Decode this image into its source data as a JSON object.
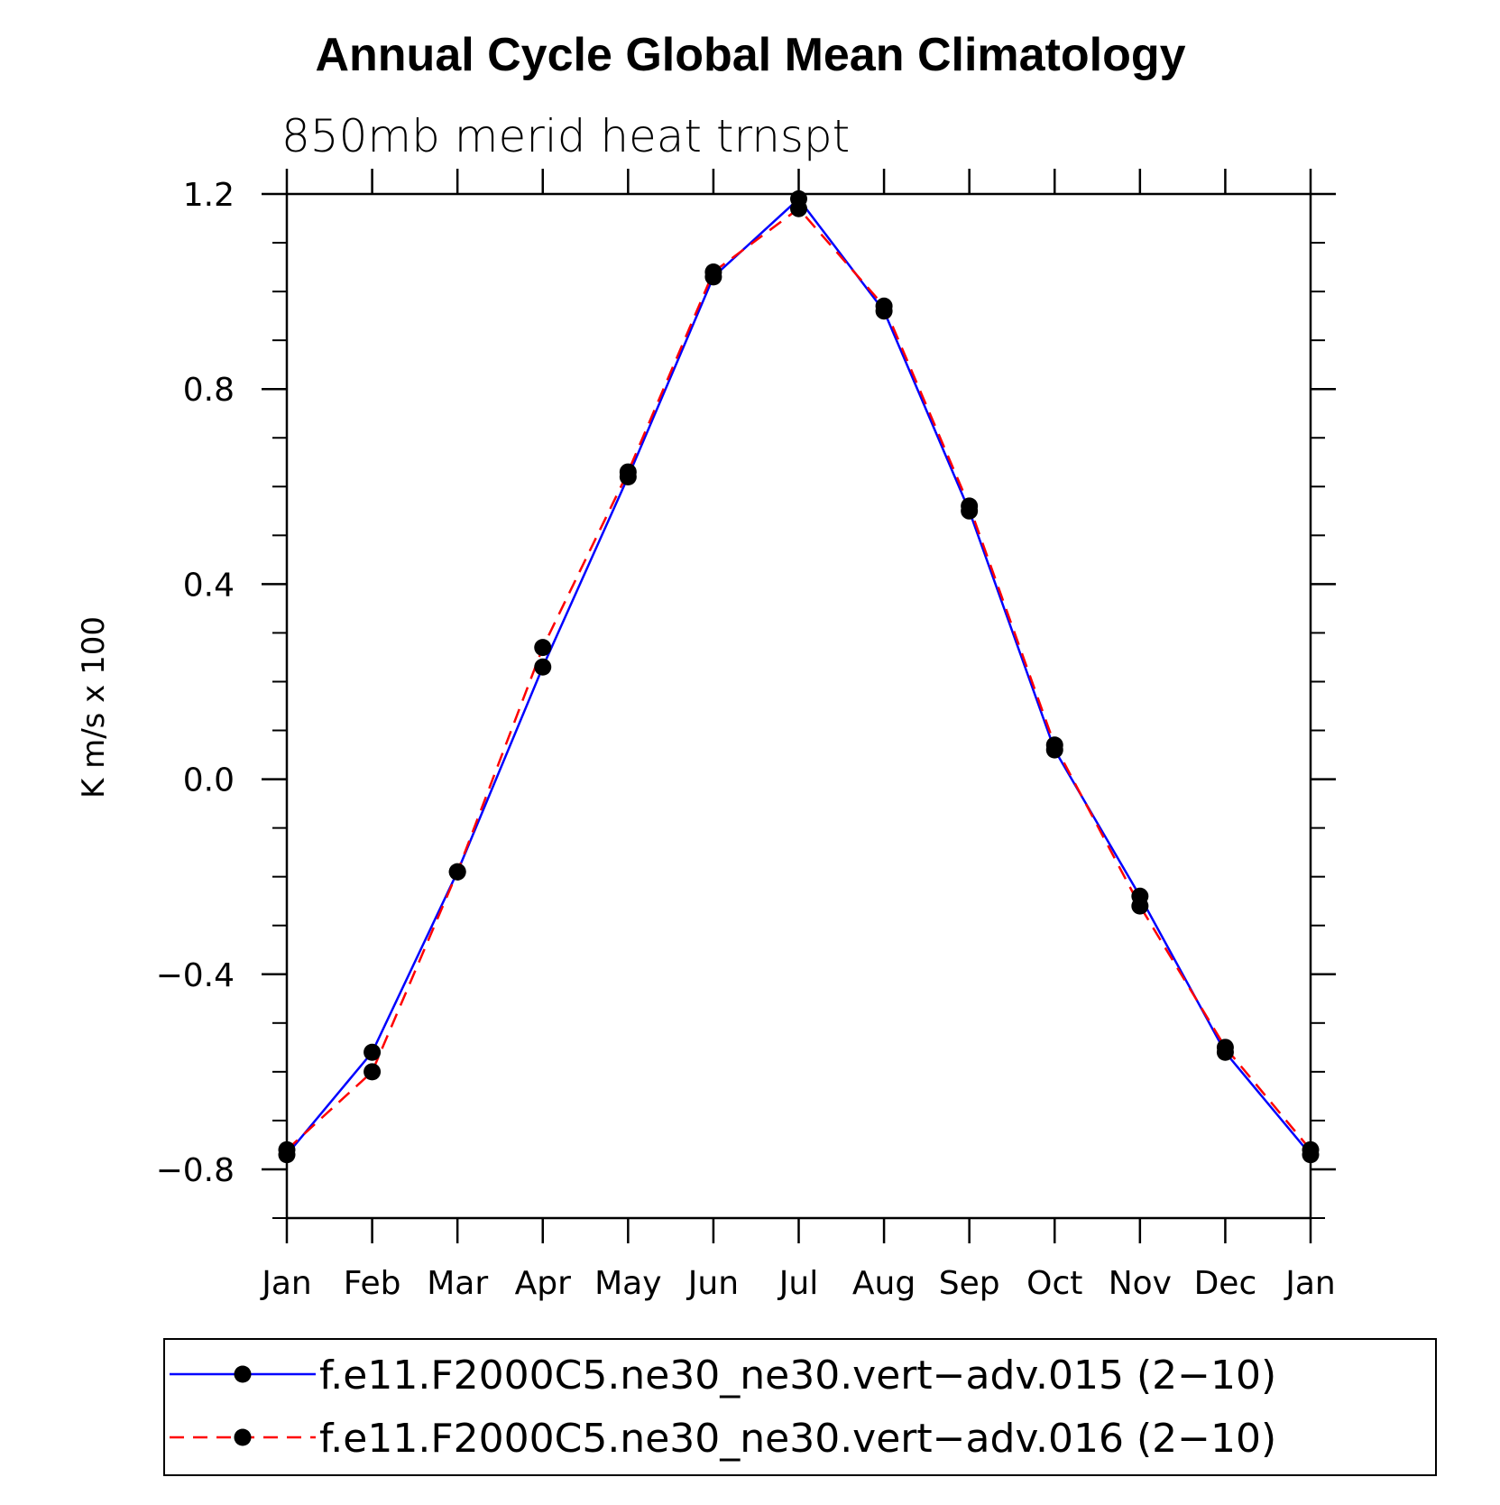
{
  "chart_data": {
    "type": "line",
    "title": "Annual Cycle Global Mean Climatology",
    "subtitle": "850mb merid heat trnspt",
    "ylabel": "K m/s x 100",
    "xlabel": "",
    "categories": [
      "Jan",
      "Feb",
      "Mar",
      "Apr",
      "May",
      "Jun",
      "Jul",
      "Aug",
      "Sep",
      "Oct",
      "Nov",
      "Dec",
      "Jan"
    ],
    "ylim": [
      -0.9,
      1.2
    ],
    "yticks": [
      -0.8,
      -0.4,
      0.0,
      0.4,
      0.8,
      1.2
    ],
    "ytick_labels": [
      "−0.8",
      "−0.4",
      "0.0",
      "0.4",
      "0.8",
      "1.2"
    ],
    "grid": false,
    "legend_position": "bottom",
    "series": [
      {
        "name": "f.e11.F2000C5.ne30_ne30.vert−adv.015 (2−10)",
        "color": "#0000ff",
        "dash": "solid",
        "marker": "filled-circle",
        "values": [
          -0.77,
          -0.56,
          -0.19,
          0.23,
          0.62,
          1.03,
          1.19,
          0.96,
          0.55,
          0.06,
          -0.24,
          -0.56,
          -0.77
        ]
      },
      {
        "name": "f.e11.F2000C5.ne30_ne30.vert−adv.016 (2−10)",
        "color": "#ff0000",
        "dash": "dashed",
        "marker": "filled-circle",
        "values": [
          -0.76,
          -0.6,
          -0.19,
          0.27,
          0.63,
          1.04,
          1.17,
          0.97,
          0.56,
          0.07,
          -0.26,
          -0.55,
          -0.76
        ]
      }
    ]
  }
}
